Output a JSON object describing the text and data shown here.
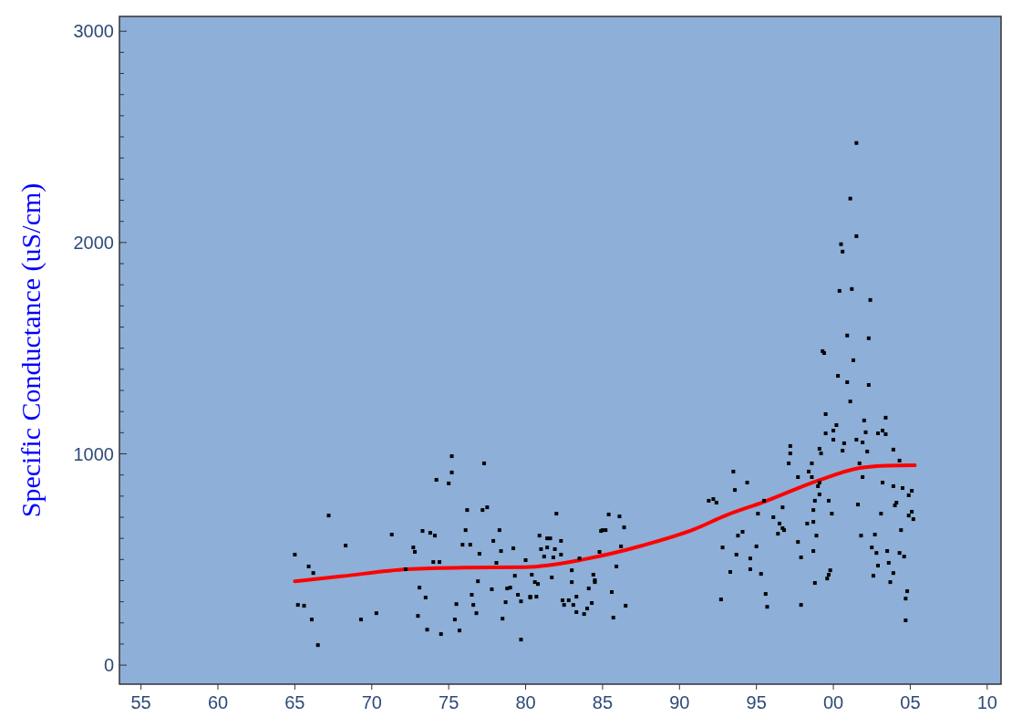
{
  "chart_data": {
    "type": "scatter",
    "ylabel": "Specific Conductance (uS/cm)",
    "xlim": [
      1953.6,
      2010.9
    ],
    "ylim": [
      -90,
      3070
    ],
    "xticks": [
      {
        "value": 1955,
        "label": "55"
      },
      {
        "value": 1960,
        "label": "60"
      },
      {
        "value": 1965,
        "label": "65"
      },
      {
        "value": 1970,
        "label": "70"
      },
      {
        "value": 1975,
        "label": "75"
      },
      {
        "value": 1980,
        "label": "80"
      },
      {
        "value": 1985,
        "label": "85"
      },
      {
        "value": 1990,
        "label": "90"
      },
      {
        "value": 1995,
        "label": "95"
      },
      {
        "value": 2000,
        "label": "00"
      },
      {
        "value": 2005,
        "label": "05"
      },
      {
        "value": 2010,
        "label": "10"
      }
    ],
    "yticks": [
      0,
      {
        "value": 100,
        "label": null
      },
      {
        "value": 200,
        "label": null
      },
      {
        "value": 300,
        "label": null
      },
      {
        "value": 400,
        "label": null
      },
      {
        "value": 500,
        "label": null
      },
      {
        "value": 600,
        "label": null
      },
      {
        "value": 700,
        "label": null
      },
      {
        "value": 800,
        "label": null
      },
      {
        "value": 900,
        "label": null
      },
      1000,
      {
        "value": 1100,
        "label": null
      },
      {
        "value": 1200,
        "label": null
      },
      {
        "value": 1300,
        "label": null
      },
      {
        "value": 1400,
        "label": null
      },
      {
        "value": 1500,
        "label": null
      },
      {
        "value": 1600,
        "label": null
      },
      {
        "value": 1700,
        "label": null
      },
      {
        "value": 1800,
        "label": null
      },
      {
        "value": 1900,
        "label": null
      },
      2000,
      {
        "value": 2100,
        "label": null
      },
      {
        "value": 2200,
        "label": null
      },
      {
        "value": 2300,
        "label": null
      },
      {
        "value": 2400,
        "label": null
      },
      {
        "value": 2500,
        "label": null
      },
      {
        "value": 2600,
        "label": null
      },
      {
        "value": 2700,
        "label": null
      },
      {
        "value": 2800,
        "label": null
      },
      {
        "value": 2900,
        "label": null
      },
      3000
    ],
    "marker": "square",
    "grid": false,
    "series": [
      {
        "color": "#000000",
        "x": [
          1965.0,
          1965.9,
          1966.2,
          1967.2,
          1968.3,
          1971.3,
          1972.2,
          1972.7,
          1972.8,
          1973.3,
          1973.8,
          1974.1,
          1974.0,
          1974.4,
          1975.2,
          1975.2,
          1975.0,
          1974.2,
          1976.2,
          1977.2,
          1977.5,
          1977.3,
          1976.1,
          1975.9,
          1976.4,
          1977.0,
          1977.9,
          1978.3,
          1978.4,
          1979.2,
          1978.1,
          1980.0,
          1973.1,
          1973.5,
          1973.0,
          1973.6,
          1974.5,
          1975.4,
          1975.7,
          1975.5,
          1976.5,
          1976.6,
          1976.8,
          1976.9,
          1977.8,
          1978.8,
          1979.0,
          1979.3,
          1978.7,
          1978.5,
          1979.5,
          1979.7,
          1980.3,
          1979.7,
          1965.2,
          1965.6,
          1966.1,
          1966.5,
          1969.3,
          1970.3,
          1982.0,
          1985.4,
          1986.1,
          1985.0,
          1984.9,
          1985.2,
          1986.4,
          1980.9,
          1981.4,
          1981.6,
          1982.3,
          1981.0,
          1981.4,
          1981.9,
          1981.2,
          1981.8,
          1982.3,
          1983.5,
          1984.8,
          1986.2,
          1983.0,
          1980.4,
          1981.7,
          1980.6,
          1980.8,
          1983.0,
          1984.4,
          1984.5,
          1984.5,
          1985.9,
          1984.1,
          1980.3,
          1980.7,
          1982.4,
          1982.8,
          1983.3,
          1982.5,
          1983.1,
          1984.3,
          1985.6,
          1986.5,
          1983.3,
          1983.8,
          1984.0,
          1985.7,
          2001.5,
          2001.1,
          2001.5,
          2000.5,
          2000.6,
          2000.4,
          2001.2,
          2002.4,
          2000.9,
          2002.3,
          1999.3,
          1999.4,
          2001.3,
          2000.3,
          2000.9,
          2002.3,
          2001.1,
          1999.5,
          2000.2,
          2002.0,
          2003.4,
          2000.0,
          1999.5,
          2002.1,
          2002.9,
          2003.2,
          2003.4,
          2000.0,
          2000.7,
          2001.5,
          2001.9,
          1997.2,
          1997.2,
          1999.1,
          1999.2,
          2000.6,
          2002.2,
          2003.9,
          2004.3,
          1997.1,
          1998.6,
          2001.7,
          1993.5,
          1998.4,
          1997.7,
          1998.6,
          2001.9,
          1994.4,
          1999.1,
          2003.2,
          2003.9,
          2004.5,
          1999.0,
          1993.6,
          1999.1,
          2005.1,
          2004.9,
          1991.9,
          1992.2,
          1992.4,
          1995.5,
          1998.8,
          1999.7,
          2004.1,
          2004.0,
          2001.6,
          1996.7,
          1998.7,
          1995.1,
          1999.9,
          2003.1,
          2005.1,
          2004.9,
          2005.2,
          1996.1,
          1996.5,
          1998.3,
          1998.7,
          1996.7,
          1996.8,
          1996.4,
          1994.1,
          1993.8,
          1998.9,
          2001.8,
          2002.7,
          2004.4,
          1992.8,
          1995.0,
          1997.7,
          2002.5,
          1993.7,
          1994.6,
          1997.9,
          1998.7,
          2002.8,
          2003.5,
          2004.3,
          2004.6,
          2003.6,
          2002.9,
          1993.3,
          1994.6,
          1995.3,
          1999.8,
          1999.7,
          1999.6,
          2003.9,
          2002.6,
          2003.7,
          1998.8,
          2004.8,
          2004.7,
          1992.7,
          1995.6,
          1995.7,
          1997.9,
          2004.7
        ],
        "values": [
          523,
          467,
          436,
          708,
          566,
          618,
          454,
          557,
          536,
          635,
          626,
          613,
          488,
          488,
          989,
          912,
          860,
          877,
          734,
          734,
          747,
          955,
          639,
          570,
          570,
          527,
          588,
          639,
          540,
          553,
          484,
          497,
          367,
          320,
          233,
          168,
          147,
          216,
          164,
          289,
          333,
          285,
          246,
          397,
          359,
          363,
          367,
          423,
          298,
          220,
          333,
          302,
          324,
          121,
          285,
          281,
          216,
          95,
          216,
          246,
          717,
          713,
          704,
          639,
          635,
          639,
          652,
          613,
          600,
          600,
          588,
          549,
          557,
          549,
          514,
          510,
          523,
          505,
          536,
          562,
          449,
          428,
          415,
          393,
          384,
          393,
          428,
          402,
          393,
          467,
          363,
          320,
          324,
          307,
          307,
          324,
          285,
          285,
          294,
          346,
          281,
          251,
          242,
          268,
          225,
          2471,
          2208,
          2030,
          1992,
          1957,
          1771,
          1780,
          1728,
          1560,
          1547,
          1486,
          1477,
          1443,
          1369,
          1339,
          1326,
          1248,
          1188,
          1136,
          1158,
          1171,
          1110,
          1097,
          1102,
          1097,
          1110,
          1093,
          1067,
          1050,
          1067,
          1054,
          1037,
          1002,
          1024,
          1002,
          1015,
          1011,
          1020,
          968,
          955,
          955,
          955,
          916,
          916,
          890,
          890,
          890,
          864,
          864,
          864,
          847,
          838,
          847,
          829,
          808,
          825,
          804,
          778,
          786,
          769,
          778,
          778,
          778,
          769,
          756,
          760,
          747,
          734,
          717,
          717,
          717,
          726,
          708,
          691,
          700,
          670,
          670,
          678,
          648,
          639,
          622,
          631,
          613,
          613,
          613,
          618,
          639,
          557,
          562,
          583,
          557,
          523,
          505,
          510,
          540,
          531,
          540,
          531,
          514,
          484,
          471,
          441,
          454,
          432,
          449,
          428,
          410,
          436,
          423,
          393,
          389,
          350,
          315,
          311,
          337,
          276,
          285,
          212
        ]
      },
      {
        "type": "line",
        "color": "#ff0000",
        "marker": "none",
        "x": [
          1965,
          1968,
          1972.3,
          1976,
          1980,
          1983.8,
          1987.6,
          1991,
          1993,
          1995.5,
          1999,
          2001.7,
          2003.5,
          2005.3
        ],
        "values": [
          397,
          420,
          454,
          462,
          464,
          501,
          566,
          644,
          708,
          773,
          873,
          933,
          944,
          946
        ]
      }
    ]
  }
}
